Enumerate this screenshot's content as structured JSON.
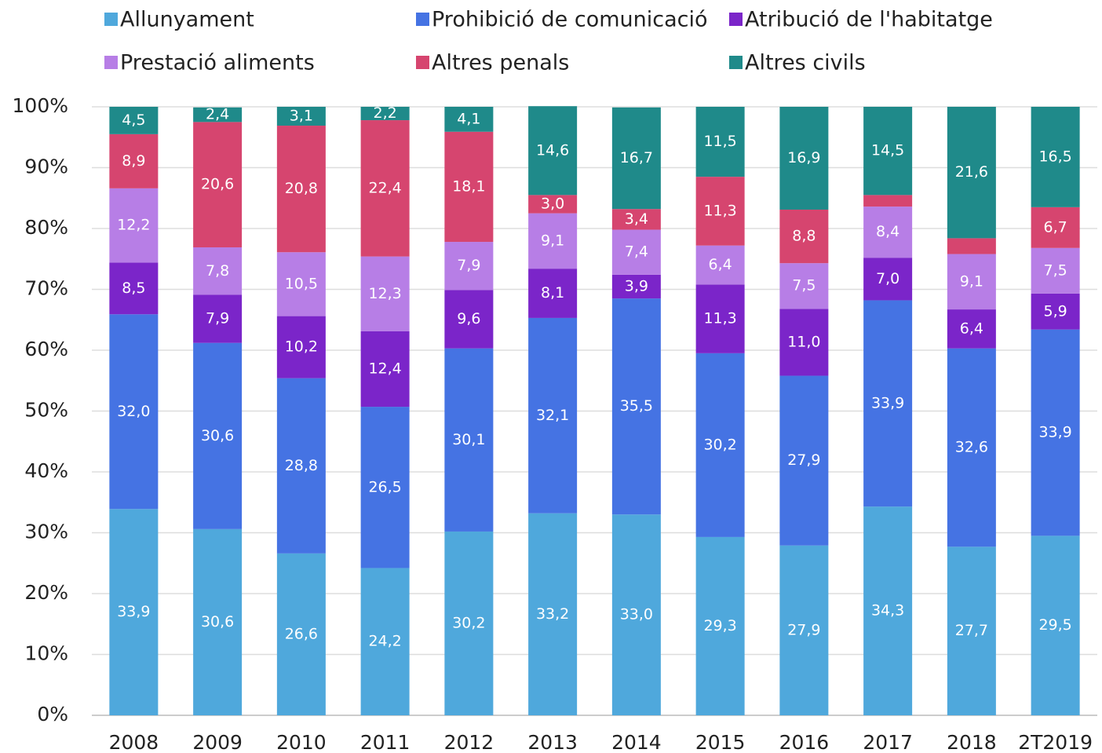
{
  "chart_data": {
    "type": "bar",
    "stacked": true,
    "categories": [
      "2008",
      "2009",
      "2010",
      "2011",
      "2012",
      "2013",
      "2014",
      "2015",
      "2016",
      "2017",
      "2018",
      "2T2019"
    ],
    "series": [
      {
        "name": "Allunyament",
        "color": "#4fa8dc",
        "values": [
          33.9,
          30.6,
          26.6,
          24.2,
          30.2,
          33.2,
          33.0,
          29.3,
          27.9,
          34.3,
          27.7,
          29.5
        ],
        "value_labels": [
          "33,9",
          "30,6",
          "26,6",
          "24,2",
          "30,2",
          "33,2",
          "33,0",
          "29,3",
          "27,9",
          "34,3",
          "27,7",
          "29,5"
        ]
      },
      {
        "name": "Prohibició de comunicació",
        "color": "#4573e3",
        "values": [
          32.0,
          30.6,
          28.8,
          26.5,
          30.1,
          32.1,
          35.5,
          30.2,
          27.9,
          33.9,
          32.6,
          33.9
        ],
        "value_labels": [
          "32,0",
          "30,6",
          "28,8",
          "26,5",
          "30,1",
          "32,1",
          "35,5",
          "30,2",
          "27,9",
          "33,9",
          "32,6",
          "33,9"
        ]
      },
      {
        "name": "Atribució de l'habitatge",
        "color": "#7b25c9",
        "values": [
          8.5,
          7.9,
          10.2,
          12.4,
          9.6,
          8.1,
          3.9,
          11.3,
          11.0,
          7.0,
          6.4,
          5.9
        ],
        "value_labels": [
          "8,5",
          "7,9",
          "10,2",
          "12,4",
          "9,6",
          "8,1",
          "3,9",
          "11,3",
          "11,0",
          "7,0",
          "6,4",
          "5,9"
        ]
      },
      {
        "name": "Prestació aliments",
        "color": "#b77ee6",
        "values": [
          12.2,
          7.8,
          10.5,
          12.3,
          7.9,
          9.1,
          7.4,
          6.4,
          7.5,
          8.4,
          9.1,
          7.5
        ],
        "value_labels": [
          "12,2",
          "7,8",
          "10,5",
          "12,3",
          "7,9",
          "9,1",
          "7,4",
          "6,4",
          "7,5",
          "8,4",
          "9,1",
          "7,5"
        ]
      },
      {
        "name": "Altres penals",
        "color": "#d6456f",
        "values": [
          8.9,
          20.6,
          20.8,
          22.4,
          18.1,
          3.0,
          3.4,
          11.3,
          8.8,
          1.9,
          2.6,
          6.7
        ],
        "value_labels": [
          "8,9",
          "20,6",
          "20,8",
          "22,4",
          "18,1",
          "3,0",
          "3,4",
          "11,3",
          "8,8",
          null,
          null,
          "6,7"
        ]
      },
      {
        "name": "Altres civils",
        "color": "#1f8a8a",
        "values": [
          4.5,
          2.4,
          3.1,
          2.2,
          4.1,
          14.6,
          16.7,
          11.5,
          16.9,
          14.5,
          21.6,
          16.5
        ],
        "value_labels": [
          "4,5",
          "2,4",
          "3,1",
          "2,2",
          "4,1",
          "14,6",
          "16,7",
          "11,5",
          "16,9",
          "14,5",
          "21,6",
          "16,5"
        ]
      }
    ],
    "ylim": [
      0,
      100
    ],
    "yticks": [
      {
        "value": 0,
        "label": "0%"
      },
      {
        "value": 10,
        "label": "10%"
      },
      {
        "value": 20,
        "label": "20%"
      },
      {
        "value": 30,
        "label": "30%"
      },
      {
        "value": 40,
        "label": "40%"
      },
      {
        "value": 50,
        "label": "50%"
      },
      {
        "value": 60,
        "label": "60%"
      },
      {
        "value": 70,
        "label": "70%"
      },
      {
        "value": 80,
        "label": "80%"
      },
      {
        "value": 90,
        "label": "90%"
      },
      {
        "value": 100,
        "label": "100%"
      }
    ],
    "grid": true,
    "legend": "top"
  }
}
